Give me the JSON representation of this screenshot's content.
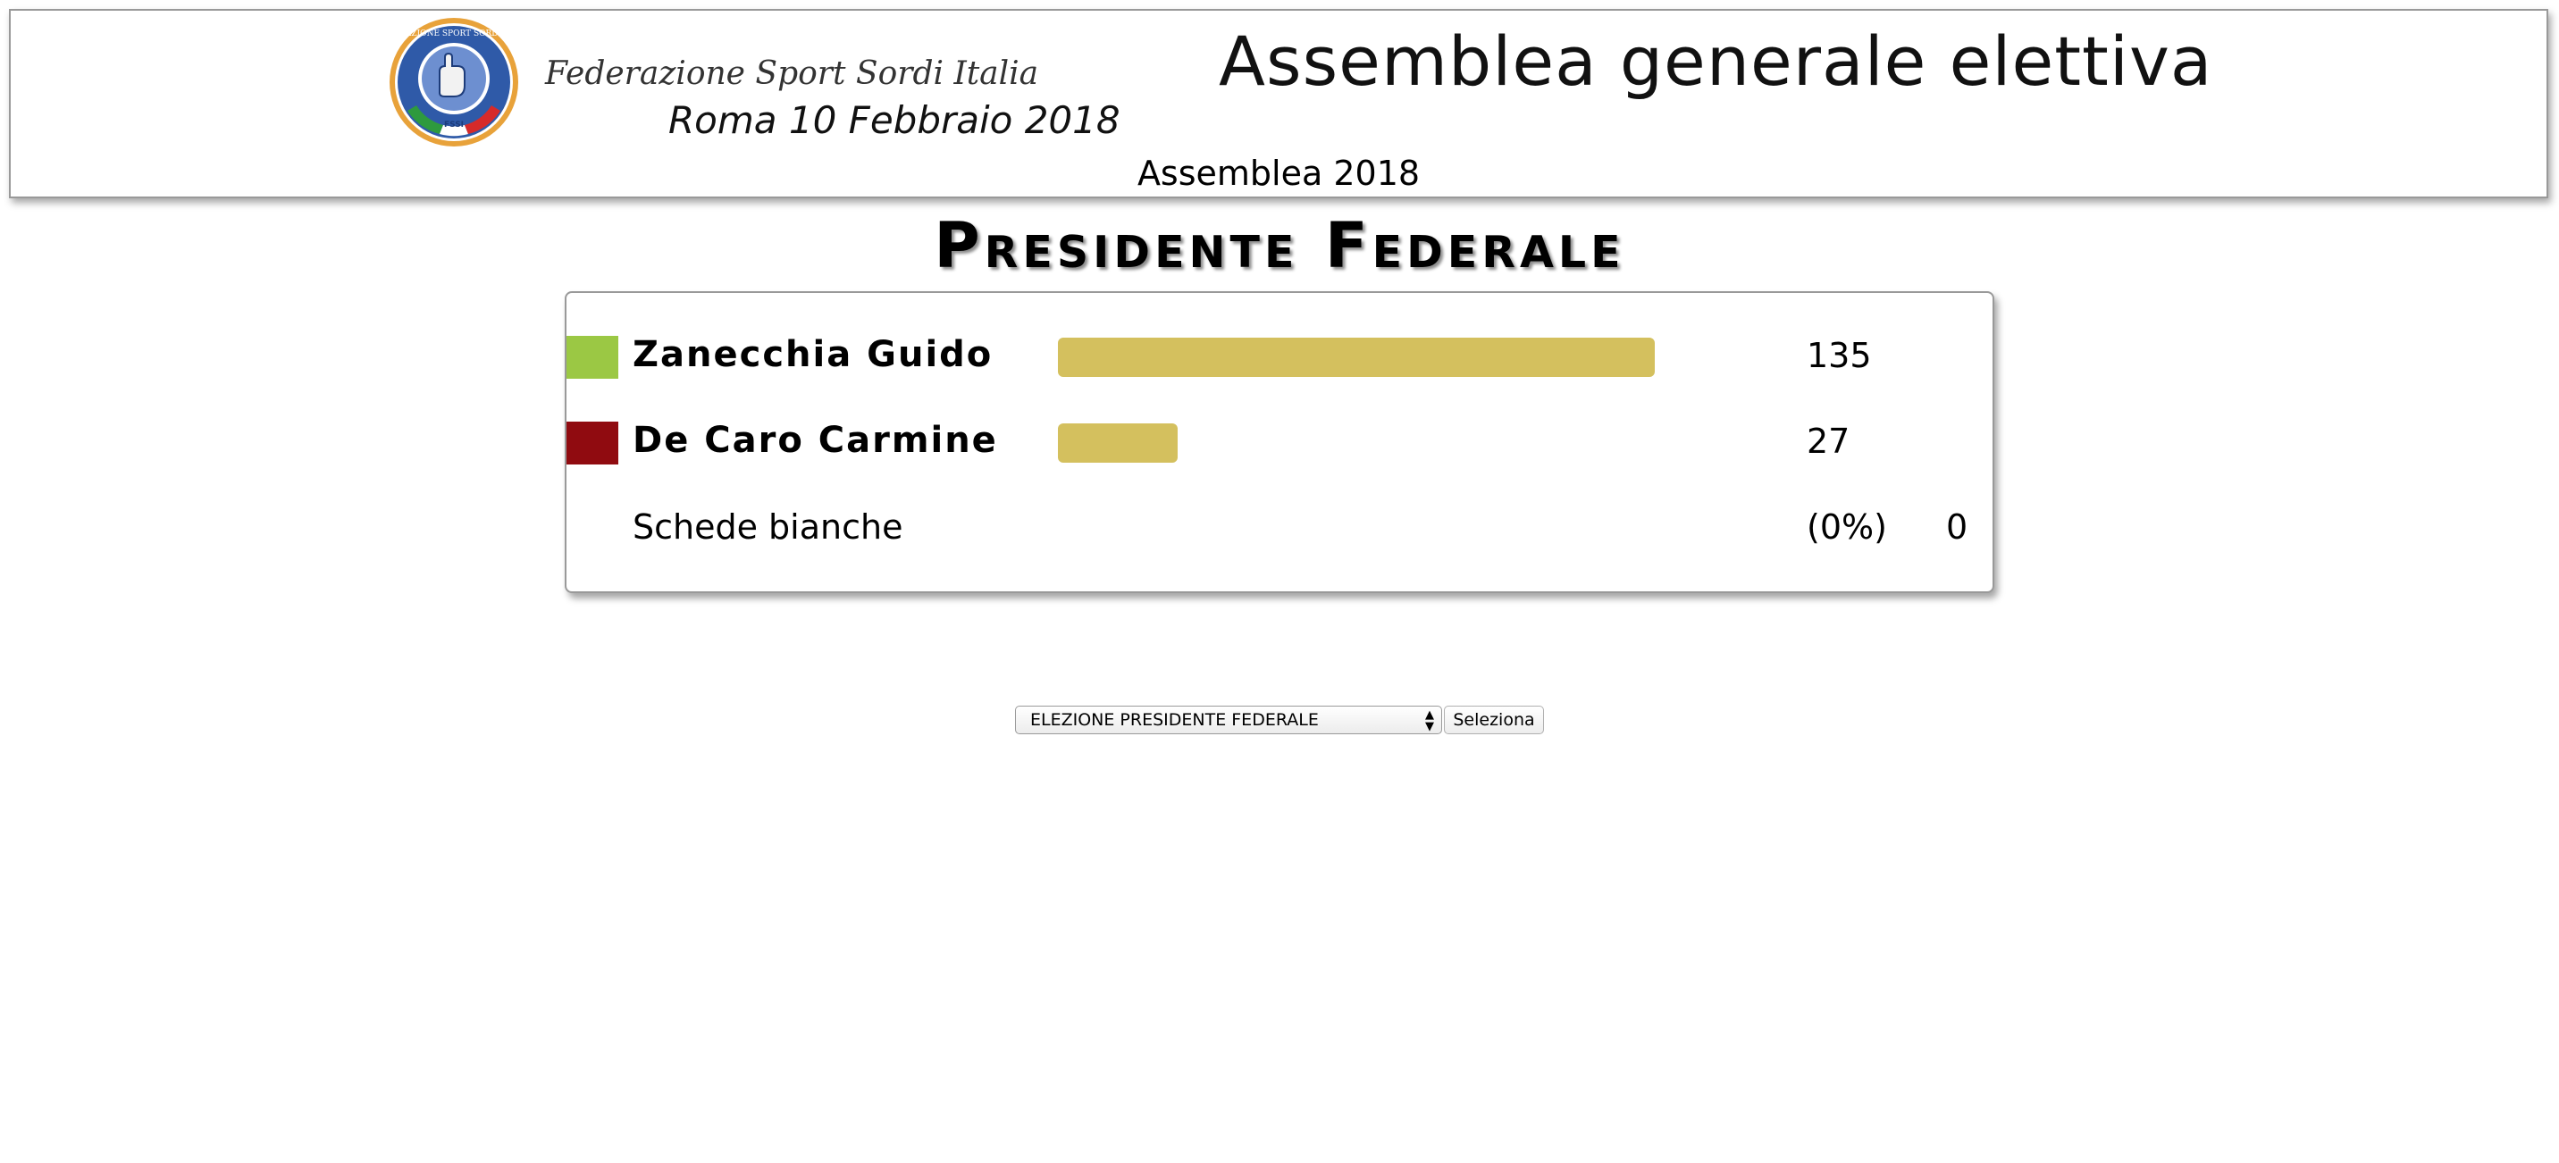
{
  "header": {
    "org_name": "Federazione Sport Sordi Italia",
    "event_date": "Roma 10 Febbraio 2018",
    "title": "Assemblea generale elettiva",
    "subtitle": "Assemblea 2018",
    "logo_icon": "fssi-logo-icon",
    "logo_text": "FEDERAZIONE SPORT SORDI ITALIA",
    "logo_abbr": "FSSI"
  },
  "section_title": "Presidente Federale",
  "results": {
    "max_votes": 135,
    "candidates": [
      {
        "name": "Zanecchia Guido",
        "votes": "135",
        "votes_num": 135,
        "color": "#9bc844"
      },
      {
        "name": "De Caro Carmine",
        "votes": "27",
        "votes_num": 27,
        "color": "#900b10"
      }
    ],
    "blank": {
      "label": "Schede bianche",
      "percent": "(0%)",
      "votes": "0"
    },
    "bar_color": "#d4c05e"
  },
  "controls": {
    "select_value": "ELEZIONE PRESIDENTE FEDERALE",
    "submit_label": "Seleziona"
  }
}
